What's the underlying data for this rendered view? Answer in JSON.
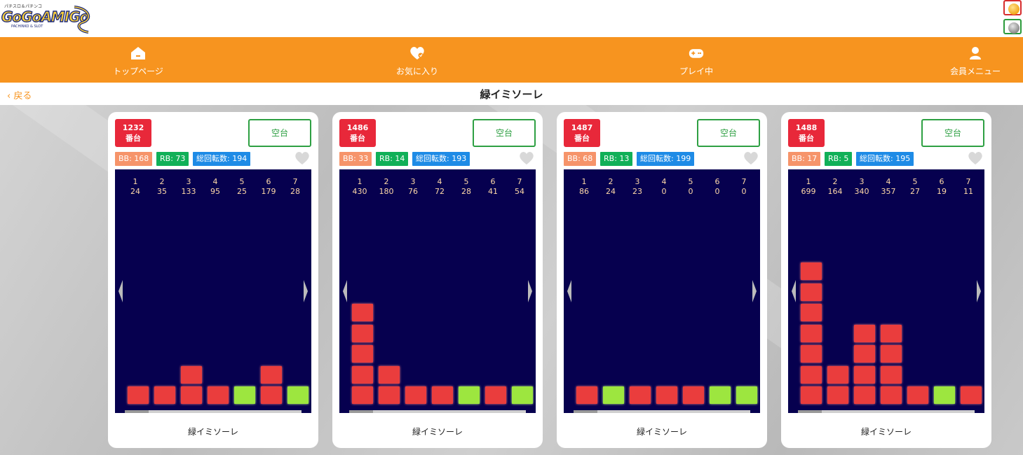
{
  "logo": {
    "top_text": "パチスロ＆パチンコ",
    "main_text": "GoGoAMIGo",
    "sub_text": "PACHINKO & SLOT"
  },
  "nav": [
    {
      "label": "トップページ",
      "icon": "home-icon"
    },
    {
      "label": "お気に入り",
      "icon": "heart-icon"
    },
    {
      "label": "プレイ中",
      "icon": "gamepad-icon"
    },
    {
      "label": "会員メニュー",
      "icon": "user-icon"
    }
  ],
  "back_label": "戻る",
  "page_title": "緑イミソーレ",
  "colors": {
    "accent": "#f7941f",
    "badge_red": "#e8283a",
    "vacant_green": "#2ea043",
    "bb": "#f6946a",
    "rb": "#11b058",
    "total": "#1e8be6",
    "graph_bg": "#06004f",
    "bar_red": "#ea3d3d",
    "bar_green": "#9de63f"
  },
  "cards": [
    {
      "number": "1232",
      "number_suffix": "番台",
      "status": "空台",
      "bb": "BB: 168",
      "rb": "RB: 73",
      "total": "総回転数: 194",
      "machine_name": "緑イミソーレ",
      "history": [
        {
          "idx": "1",
          "spins": "24",
          "type": "red",
          "blocks": 1
        },
        {
          "idx": "2",
          "spins": "35",
          "type": "red",
          "blocks": 1
        },
        {
          "idx": "3",
          "spins": "133",
          "type": "red",
          "blocks": 2
        },
        {
          "idx": "4",
          "spins": "95",
          "type": "red",
          "blocks": 1
        },
        {
          "idx": "5",
          "spins": "25",
          "type": "green",
          "blocks": 1
        },
        {
          "idx": "6",
          "spins": "179",
          "type": "red",
          "blocks": 2
        },
        {
          "idx": "7",
          "spins": "28",
          "type": "green",
          "blocks": 1
        }
      ]
    },
    {
      "number": "1486",
      "number_suffix": "番台",
      "status": "空台",
      "bb": "BB: 33",
      "rb": "RB: 14",
      "total": "総回転数: 193",
      "machine_name": "緑イミソーレ",
      "history": [
        {
          "idx": "1",
          "spins": "430",
          "type": "red",
          "blocks": 5
        },
        {
          "idx": "2",
          "spins": "180",
          "type": "red",
          "blocks": 2
        },
        {
          "idx": "3",
          "spins": "76",
          "type": "red",
          "blocks": 1
        },
        {
          "idx": "4",
          "spins": "72",
          "type": "red",
          "blocks": 1
        },
        {
          "idx": "5",
          "spins": "28",
          "type": "green",
          "blocks": 1
        },
        {
          "idx": "6",
          "spins": "41",
          "type": "red",
          "blocks": 1
        },
        {
          "idx": "7",
          "spins": "54",
          "type": "green",
          "blocks": 1
        }
      ]
    },
    {
      "number": "1487",
      "number_suffix": "番台",
      "status": "空台",
      "bb": "BB: 68",
      "rb": "RB: 13",
      "total": "総回転数: 199",
      "machine_name": "緑イミソーレ",
      "history": [
        {
          "idx": "1",
          "spins": "86",
          "type": "red",
          "blocks": 1
        },
        {
          "idx": "2",
          "spins": "24",
          "type": "green",
          "blocks": 1
        },
        {
          "idx": "3",
          "spins": "23",
          "type": "red",
          "blocks": 1
        },
        {
          "idx": "4",
          "spins": "0",
          "type": "red",
          "blocks": 1
        },
        {
          "idx": "5",
          "spins": "0",
          "type": "red",
          "blocks": 1
        },
        {
          "idx": "6",
          "spins": "0",
          "type": "green",
          "blocks": 1
        },
        {
          "idx": "7",
          "spins": "0",
          "type": "green",
          "blocks": 1
        }
      ]
    },
    {
      "number": "1488",
      "number_suffix": "番台",
      "status": "空台",
      "bb": "BB: 17",
      "rb": "RB: 5",
      "total": "総回転数: 195",
      "machine_name": "緑イミソーレ",
      "history": [
        {
          "idx": "1",
          "spins": "699",
          "type": "red",
          "blocks": 7
        },
        {
          "idx": "2",
          "spins": "164",
          "type": "red",
          "blocks": 2
        },
        {
          "idx": "3",
          "spins": "340",
          "type": "red",
          "blocks": 4
        },
        {
          "idx": "4",
          "spins": "357",
          "type": "red",
          "blocks": 4
        },
        {
          "idx": "5",
          "spins": "27",
          "type": "red",
          "blocks": 1
        },
        {
          "idx": "6",
          "spins": "19",
          "type": "green",
          "blocks": 1
        },
        {
          "idx": "7",
          "spins": "11",
          "type": "red",
          "blocks": 1
        }
      ]
    }
  ]
}
